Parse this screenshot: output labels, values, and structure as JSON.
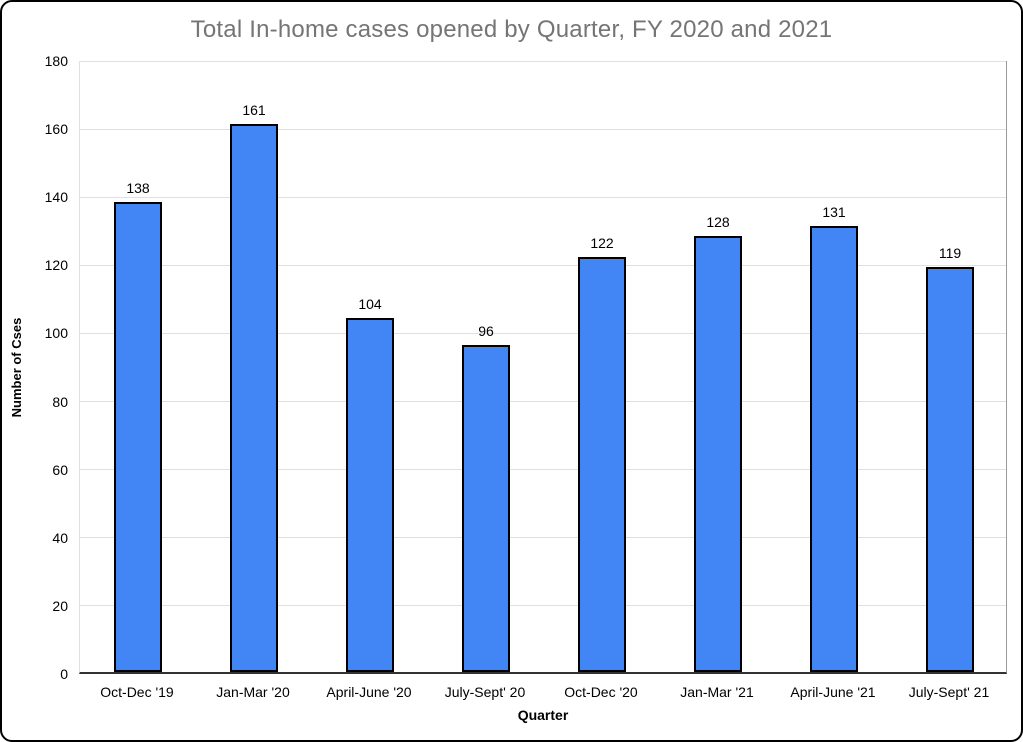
{
  "chart_data": {
    "type": "bar",
    "title": "Total In-home cases opened by Quarter, FY 2020 and 2021",
    "categories": [
      "Oct-Dec '19",
      "Jan-Mar '20",
      "April-June '20",
      "July-Sept' 20",
      "Oct-Dec '20",
      "Jan-Mar '21",
      "April-June '21",
      "July-Sept' 21"
    ],
    "values": [
      138,
      161,
      104,
      96,
      122,
      128,
      131,
      119
    ],
    "xlabel": "Quarter",
    "ylabel": "Number of Cses",
    "ylim": [
      0,
      180
    ],
    "yticks": [
      0,
      20,
      40,
      60,
      80,
      100,
      120,
      140,
      160,
      180
    ],
    "grid": true,
    "legend": "none",
    "data_labels": true,
    "colors": {
      "bar_fill": "#4285f4",
      "bar_border": "#000000",
      "title_text": "#757575",
      "gridline": "#e0e0e0",
      "axis_line": "#333333",
      "label_text": "#000000"
    }
  }
}
